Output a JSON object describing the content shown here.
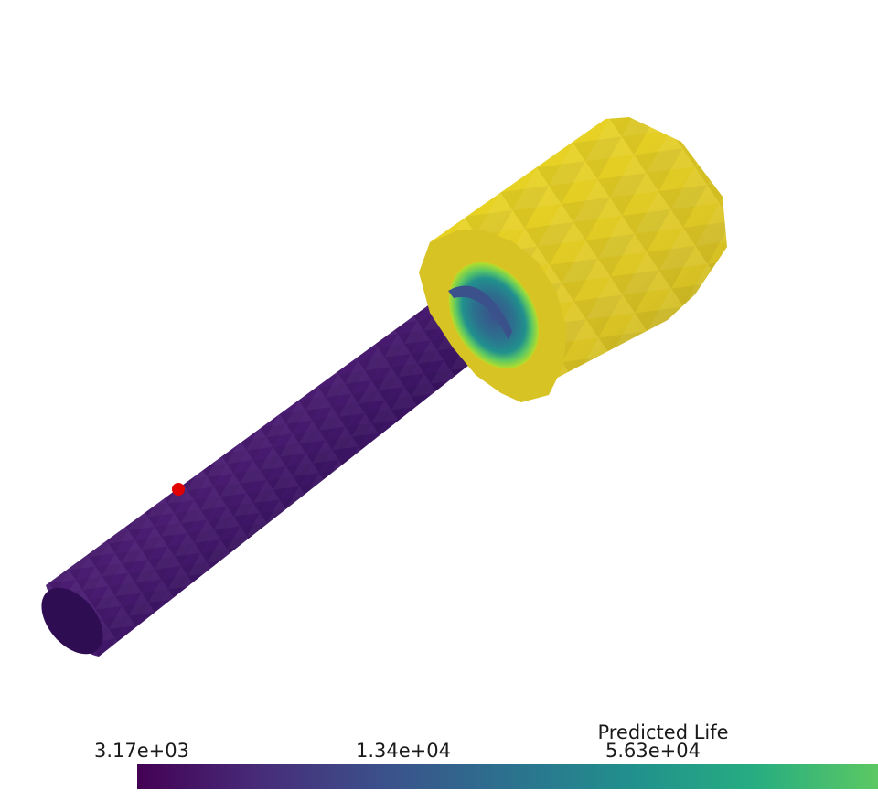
{
  "colorbar": {
    "title": "Predicted Life",
    "ticks": [
      "3.17e+03",
      "1.34e+04",
      "5.63e+04"
    ]
  },
  "colors": {
    "shaft": "#3f1667",
    "head": "#e5cf24",
    "probe_marker": "#e00000",
    "colormap": [
      "#440154",
      "#472c7a",
      "#3b518b",
      "#2c718e",
      "#21908d",
      "#27ad81",
      "#5cc863"
    ]
  }
}
